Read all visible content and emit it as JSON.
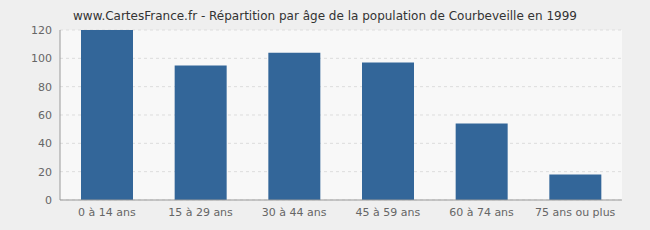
{
  "chart_data": {
    "type": "bar",
    "title": "www.CartesFrance.fr - Répartition par âge de la population de Courbeveille en 1999",
    "categories": [
      "0 à 14 ans",
      "15 à 29 ans",
      "30 à 44 ans",
      "45 à 59 ans",
      "60 à 74 ans",
      "75 ans ou plus"
    ],
    "values": [
      120,
      95,
      104,
      97,
      54,
      18
    ],
    "color": "#336699",
    "ylim": [
      0,
      120
    ],
    "yticks": [
      0,
      20,
      40,
      60,
      80,
      100,
      120
    ],
    "grid": true
  }
}
